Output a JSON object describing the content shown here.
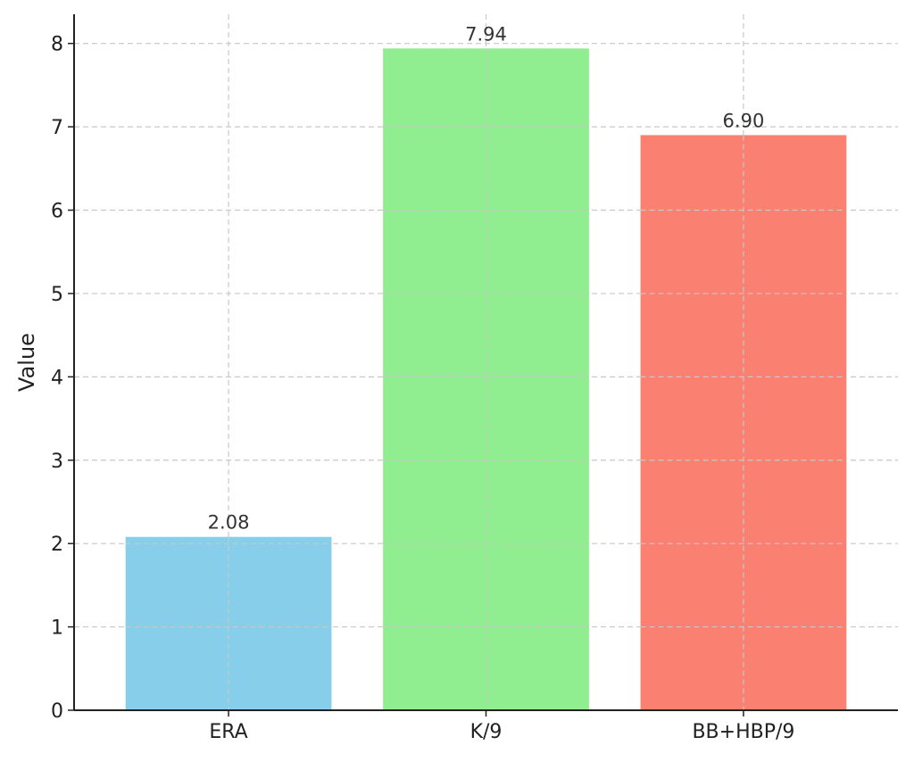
{
  "chart_data": {
    "type": "bar",
    "title": "",
    "xlabel": "",
    "ylabel": "Value",
    "categories": [
      "ERA",
      "K/9",
      "BB+HBP/9"
    ],
    "values": [
      2.08,
      7.94,
      6.9
    ],
    "data_labels": [
      "2.08",
      "7.94",
      "6.90"
    ],
    "colors": [
      "#87CEEB",
      "#90EE90",
      "#FA8072"
    ],
    "ylim": [
      0,
      8.35
    ],
    "yticks": [
      0,
      1,
      2,
      3,
      4,
      5,
      6,
      7,
      8
    ],
    "ytick_labels": [
      "0",
      "1",
      "2",
      "3",
      "4",
      "5",
      "6",
      "7",
      "8"
    ],
    "grid": true,
    "grid_style": "dashed",
    "legend": "none"
  }
}
